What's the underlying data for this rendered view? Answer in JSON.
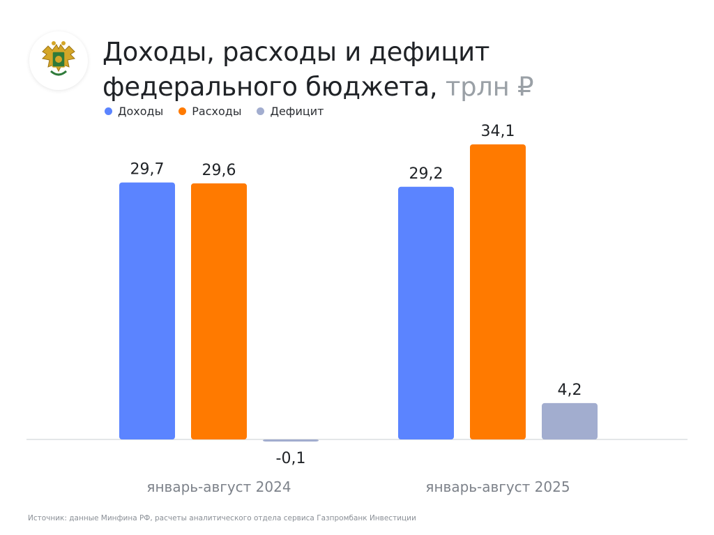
{
  "title_line1": "Доходы, расходы и дефицит",
  "title_line2": "федерального бюджета,",
  "title_unit": "трлн ₽",
  "source": "Источник: данные Минфина РФ, расчеты аналитического отдела сервиса Газпромбанк Инвестиции",
  "colors": {
    "income": "#5b84ff",
    "expense": "#ff7a00",
    "deficit": "#a2adcf"
  },
  "chart_data": {
    "type": "bar",
    "title": "Доходы, расходы и дефицит федерального бюджета, трлн ₽",
    "categories": [
      "январь-август 2024",
      "январь-август 2025"
    ],
    "series": [
      {
        "name": "Доходы",
        "key": "income",
        "values": [
          29.7,
          29.2
        ],
        "labels": [
          "29,7",
          "29,2"
        ]
      },
      {
        "name": "Расходы",
        "key": "expense",
        "values": [
          29.6,
          34.1
        ],
        "labels": [
          "29,6",
          "34,1"
        ]
      },
      {
        "name": "Дефицит",
        "key": "deficit",
        "values": [
          -0.1,
          4.2
        ],
        "labels": [
          "-0,1",
          "4,2"
        ]
      }
    ],
    "xlabel": "",
    "ylabel": "",
    "ylim": [
      0,
      34.1
    ],
    "grid": false,
    "legend": "top-left"
  }
}
